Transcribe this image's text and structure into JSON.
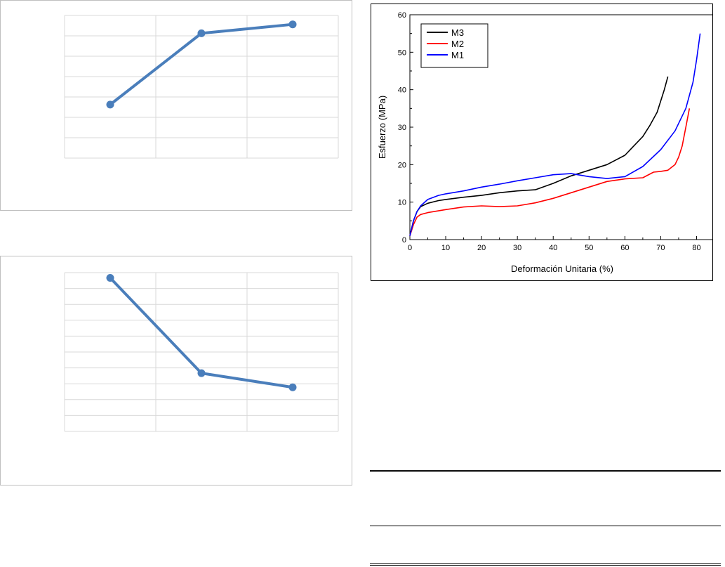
{
  "chart_data": [
    {
      "type": "line",
      "series": [
        {
          "name": "",
          "values": [
            4,
            8,
            8.5
          ],
          "color": "#4a7ebb"
        }
      ],
      "categories": [
        "",
        "",
        ""
      ],
      "ylim": [
        1,
        9
      ],
      "grid": true,
      "legend": "none"
    },
    {
      "type": "line",
      "series": [
        {
          "name": "",
          "values": [
            8.7,
            3.3,
            2.5
          ],
          "color": "#4a7ebb"
        }
      ],
      "categories": [
        "",
        "",
        ""
      ],
      "ylim": [
        0,
        9
      ],
      "grid": true,
      "legend": "none"
    },
    {
      "type": "line",
      "title": "",
      "xlabel": "Deformación Unitaria (%)",
      "ylabel": "Esfuerzo (MPa)",
      "xlim": [
        0,
        85
      ],
      "ylim": [
        0,
        60
      ],
      "xticks": [
        0,
        10,
        20,
        30,
        40,
        50,
        60,
        70,
        80
      ],
      "yticks": [
        0,
        10,
        20,
        30,
        40,
        50,
        60
      ],
      "legend": "top-left",
      "series": [
        {
          "name": "M3",
          "color": "#000000",
          "points": [
            [
              0,
              1
            ],
            [
              1,
              5
            ],
            [
              2,
              7.5
            ],
            [
              3,
              8.8
            ],
            [
              5,
              9.7
            ],
            [
              8,
              10.4
            ],
            [
              10,
              10.7
            ],
            [
              15,
              11.3
            ],
            [
              20,
              11.8
            ],
            [
              25,
              12.5
            ],
            [
              30,
              13
            ],
            [
              35,
              13.3
            ],
            [
              40,
              15
            ],
            [
              45,
              17
            ],
            [
              50,
              18.5
            ],
            [
              55,
              20
            ],
            [
              60,
              22.5
            ],
            [
              62,
              24.5
            ],
            [
              65,
              27.5
            ],
            [
              67,
              30.5
            ],
            [
              69,
              34
            ],
            [
              70,
              37
            ],
            [
              71,
              40
            ],
            [
              72,
              43.5
            ]
          ]
        },
        {
          "name": "M2",
          "color": "#ff0000",
          "points": [
            [
              0,
              1
            ],
            [
              1,
              4
            ],
            [
              2,
              6
            ],
            [
              3,
              6.7
            ],
            [
              5,
              7.2
            ],
            [
              10,
              8
            ],
            [
              15,
              8.7
            ],
            [
              20,
              9
            ],
            [
              25,
              8.8
            ],
            [
              30,
              9
            ],
            [
              35,
              9.8
            ],
            [
              40,
              11
            ],
            [
              45,
              12.5
            ],
            [
              50,
              14
            ],
            [
              55,
              15.5
            ],
            [
              60,
              16.2
            ],
            [
              65,
              16.5
            ],
            [
              68,
              18
            ],
            [
              70,
              18.2
            ],
            [
              72,
              18.5
            ],
            [
              74,
              20
            ],
            [
              75,
              22
            ],
            [
              76,
              25
            ],
            [
              77,
              30
            ],
            [
              78,
              35
            ]
          ]
        },
        {
          "name": "M1",
          "color": "#0000ff",
          "points": [
            [
              0,
              1
            ],
            [
              1,
              5
            ],
            [
              2,
              7.5
            ],
            [
              3,
              9
            ],
            [
              5,
              10.7
            ],
            [
              8,
              11.8
            ],
            [
              10,
              12.2
            ],
            [
              15,
              13
            ],
            [
              20,
              14
            ],
            [
              25,
              14.8
            ],
            [
              30,
              15.7
            ],
            [
              35,
              16.5
            ],
            [
              40,
              17.3
            ],
            [
              45,
              17.6
            ],
            [
              50,
              16.8
            ],
            [
              55,
              16.3
            ],
            [
              60,
              16.8
            ],
            [
              65,
              19.5
            ],
            [
              70,
              24
            ],
            [
              74,
              29
            ],
            [
              77,
              35
            ],
            [
              79,
              42
            ],
            [
              80,
              48
            ],
            [
              81,
              55
            ]
          ]
        }
      ]
    }
  ]
}
